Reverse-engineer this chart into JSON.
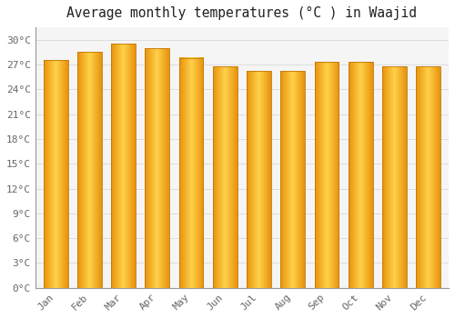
{
  "title": "Average monthly temperatures (°C ) in Waajid",
  "months": [
    "Jan",
    "Feb",
    "Mar",
    "Apr",
    "May",
    "Jun",
    "Jul",
    "Aug",
    "Sep",
    "Oct",
    "Nov",
    "Dec"
  ],
  "values": [
    27.5,
    28.5,
    29.5,
    29.0,
    27.8,
    26.8,
    26.2,
    26.2,
    27.3,
    27.3,
    26.8,
    26.8
  ],
  "ylim": [
    0,
    31.5
  ],
  "yticks": [
    0,
    3,
    6,
    9,
    12,
    15,
    18,
    21,
    24,
    27,
    30
  ],
  "ytick_labels": [
    "0°C",
    "3°C",
    "6°C",
    "9°C",
    "12°C",
    "15°C",
    "18°C",
    "21°C",
    "24°C",
    "27°C",
    "30°C"
  ],
  "background_color": "#ffffff",
  "plot_bg_color": "#f5f5f5",
  "grid_color": "#dddddd",
  "title_fontsize": 10.5,
  "tick_fontsize": 8,
  "bar_color_center": "#FFD04A",
  "bar_color_edge": "#E8920A",
  "bar_edge_color": "#C07808",
  "bar_width": 0.72
}
